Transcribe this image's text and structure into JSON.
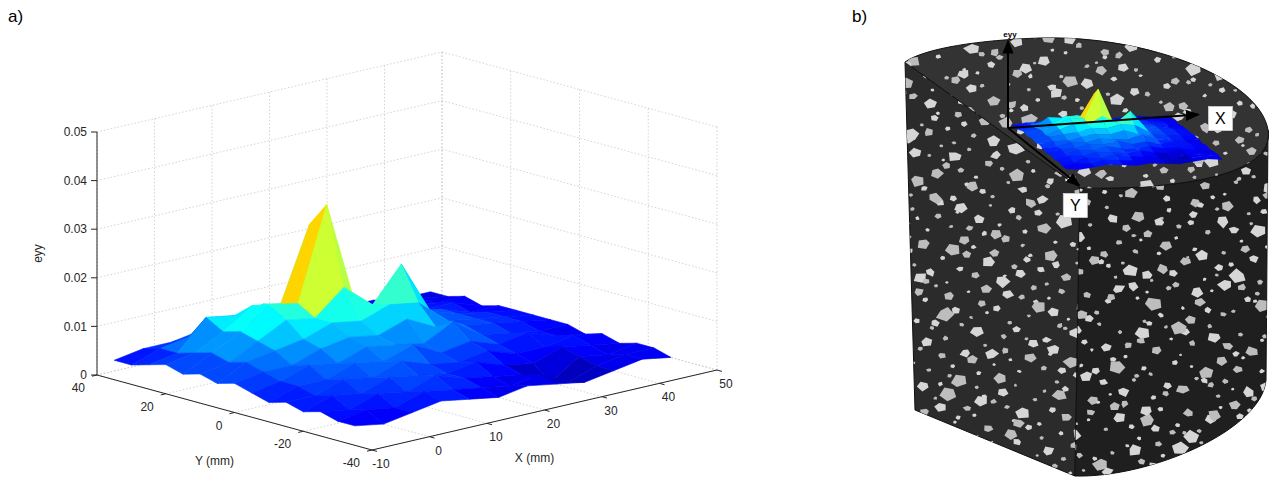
{
  "chart_data": {
    "type": "surface",
    "panel_label": "a)",
    "xlabel": "X (mm)",
    "ylabel": "Y (mm)",
    "zlabel": "eyy",
    "x": [
      -10,
      -5,
      0,
      5,
      10,
      15,
      20,
      25,
      30,
      35,
      40,
      45
    ],
    "y": [
      -35,
      -30,
      -25,
      -20,
      -15,
      -10,
      -5,
      0,
      5,
      10,
      15,
      20,
      25,
      30,
      35
    ],
    "z": [
      [
        0.004,
        0.003,
        0.004,
        0.005,
        0.004,
        0.003,
        0.004,
        0.003,
        0.002,
        0.003,
        0.004,
        0.003
      ],
      [
        0.004,
        0.005,
        0.004,
        0.006,
        0.005,
        0.004,
        0.003,
        0.004,
        0.001,
        0.003,
        0.004,
        0.004
      ],
      [
        0.005,
        0.004,
        0.006,
        0.005,
        0.007,
        0.005,
        0.004,
        0.003,
        0,
        0.004,
        0.003,
        0.004
      ],
      [
        0.004,
        0.006,
        0.005,
        0.007,
        0.006,
        0.005,
        0.006,
        0.004,
        0.003,
        0.005,
        0.004,
        0.003
      ],
      [
        0.005,
        0.005,
        0.007,
        0.006,
        0.008,
        0.006,
        0.005,
        0.006,
        0.004,
        0.004,
        0.005,
        0.004
      ],
      [
        0.004,
        0.006,
        0.006,
        0.008,
        0.007,
        0.009,
        0.006,
        0.007,
        0.005,
        0.006,
        0.004,
        0.003
      ],
      [
        0.005,
        0.006,
        0.008,
        0.007,
        0.009,
        0.008,
        0.007,
        0.01,
        0.006,
        0.005,
        0.004,
        0.004
      ],
      [
        0.006,
        0.007,
        0.007,
        0.009,
        0.01,
        0.009,
        0.011,
        0.008,
        0.007,
        0.006,
        0.005,
        0.004
      ],
      [
        0.005,
        0.008,
        0.009,
        0.01,
        0.012,
        0.011,
        0.013,
        0.012,
        0.007,
        0.006,
        0.005,
        0.004
      ],
      [
        0.006,
        0.007,
        0.01,
        0.013,
        0.012,
        0.017,
        0.012,
        0.019,
        0.008,
        0.006,
        0.005,
        0.004
      ],
      [
        0.005,
        0.008,
        0.011,
        0.015,
        0.014,
        0.033,
        0.011,
        0.009,
        0.007,
        0.006,
        0.004,
        0.004
      ],
      [
        0.006,
        0.007,
        0.01,
        0.014,
        0.013,
        0.028,
        0.01,
        0.008,
        0.006,
        0.005,
        0.005,
        0.003
      ],
      [
        0.005,
        0.006,
        0.012,
        0.011,
        0.012,
        0.01,
        0.008,
        0.007,
        0.006,
        0.005,
        0.004,
        0.004
      ],
      [
        0.004,
        0.006,
        0.007,
        0.008,
        0.008,
        0.007,
        0.006,
        0.005,
        0.005,
        0.004,
        0.004,
        0.003
      ],
      [
        0.004,
        0.005,
        0.005,
        0.006,
        0.006,
        0.005,
        0.005,
        0.004,
        0.004,
        0.004,
        0.003,
        0.003
      ]
    ],
    "xlim": [
      -10,
      50
    ],
    "xticks": [
      -10,
      0,
      10,
      20,
      30,
      40,
      50
    ],
    "ylim": [
      -40,
      40
    ],
    "yticks": [
      -40,
      -20,
      0,
      20,
      40
    ],
    "zlim": [
      0,
      0.05
    ],
    "zticks": [
      0,
      0.01,
      0.02,
      0.03,
      0.04,
      0.05
    ],
    "grid": true
  },
  "inset": {
    "panel_label": "b)",
    "axis_labels": {
      "z": "eyy",
      "x": "X",
      "y": "Y"
    }
  }
}
